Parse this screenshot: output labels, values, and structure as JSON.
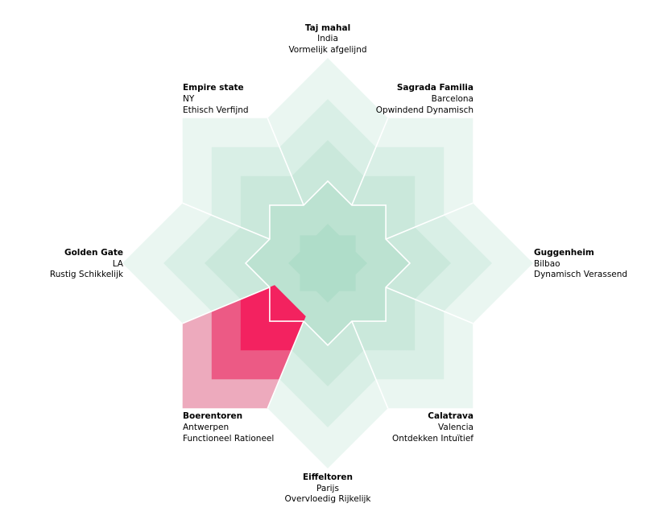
{
  "diagram": {
    "layers": 5,
    "highlight_color": "#f41d5c",
    "base_color": "#9fd6bf",
    "segments": [
      {
        "id": "taj",
        "title": "Taj mahal",
        "line1": "India",
        "line2": "Vormelijk afgelijnd",
        "highlight": false
      },
      {
        "id": "sagrada",
        "title": "Sagrada Familia",
        "line1": "Barcelona",
        "line2": "Opwindend Dynamisch",
        "highlight": false
      },
      {
        "id": "guggenheim",
        "title": "Guggenheim",
        "line1": "Bilbao",
        "line2": "Dynamisch Verassend",
        "highlight": false
      },
      {
        "id": "calatrava",
        "title": "Calatrava",
        "line1": "Valencia",
        "line2": "Ontdekken Intuïtief",
        "highlight": false
      },
      {
        "id": "eiffel",
        "title": "Eiffeltoren",
        "line1": "Parijs",
        "line2": "Overvloedig Rijkelijk",
        "highlight": false
      },
      {
        "id": "boeren",
        "title": "Boerentoren",
        "line1": "Antwerpen",
        "line2": "Functioneel Rationeel",
        "highlight": true,
        "level": 3
      },
      {
        "id": "golden",
        "title": "Golden Gate",
        "line1": "LA",
        "line2": "Rustig Schikkelijk",
        "highlight": false
      },
      {
        "id": "empire",
        "title": "Empire state",
        "line1": "NY",
        "line2": "Ethisch Verfijnd",
        "highlight": false
      }
    ]
  }
}
